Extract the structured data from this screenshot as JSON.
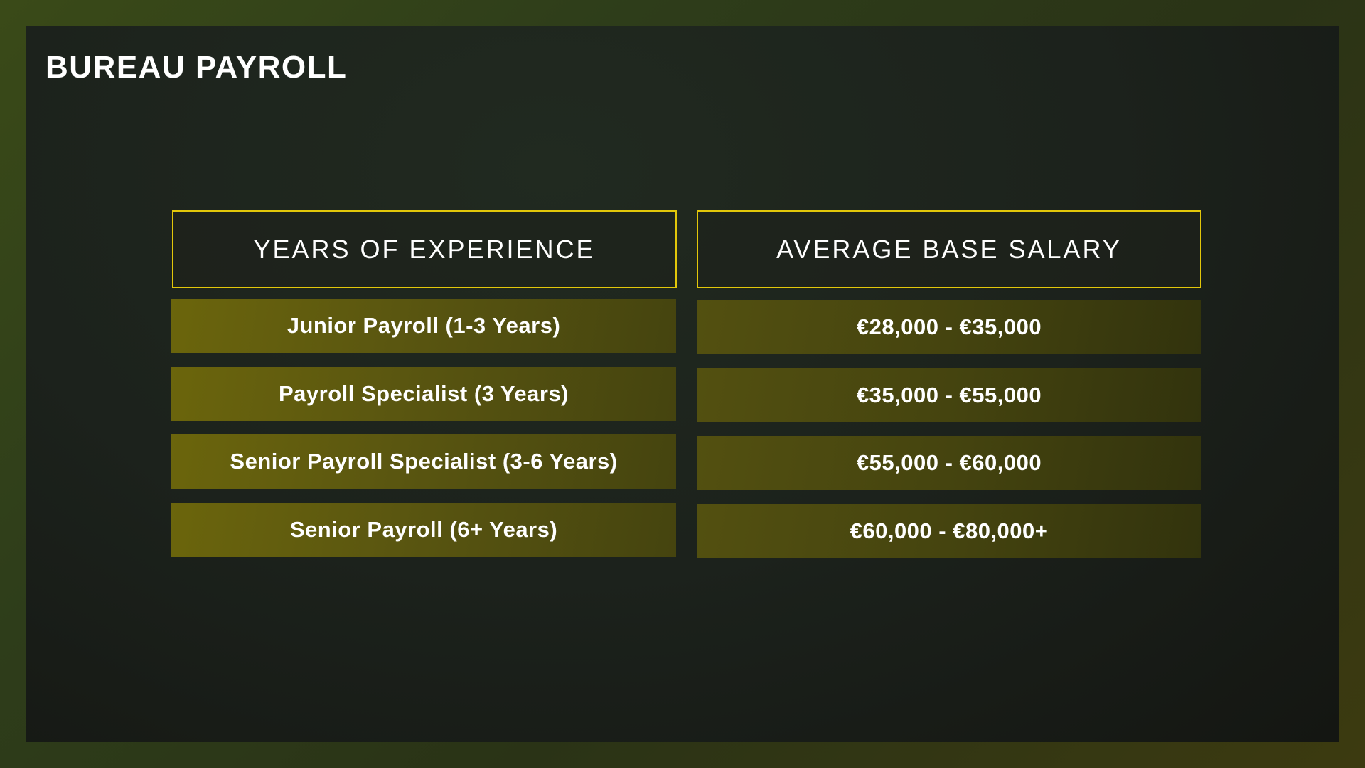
{
  "title": "BUREAU PAYROLL",
  "table": {
    "headers": [
      "YEARS OF EXPERIENCE",
      "AVERAGE BASE SALARY"
    ],
    "rows": [
      {
        "experience": "Junior Payroll (1-3 Years)",
        "salary": "€28,000 - €35,000"
      },
      {
        "experience": "Payroll Specialist (3 Years)",
        "salary": "€35,000 - €55,000"
      },
      {
        "experience": "Senior Payroll Specialist (3-6 Years)",
        "salary": "€55,000 - €60,000"
      },
      {
        "experience": "Senior Payroll (6+ Years)",
        "salary": "€60,000 - €80,000+"
      }
    ]
  },
  "colors": {
    "accent_border": "#e2c70a",
    "cell_fill": "#5a5610"
  }
}
